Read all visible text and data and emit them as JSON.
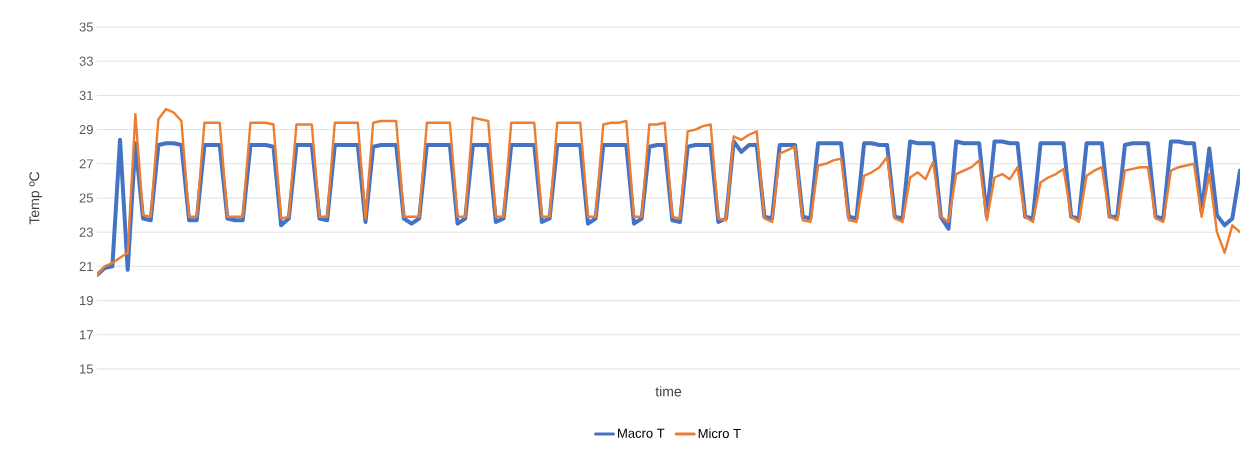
{
  "chart_data": {
    "type": "line",
    "xlabel": "time",
    "ylabel": "Temp ºC",
    "categories": [
      null,
      null,
      null,
      null,
      null,
      null,
      null,
      null,
      null,
      null,
      null,
      null,
      null,
      null,
      null,
      null,
      null,
      null,
      null,
      null,
      null,
      null,
      null,
      null,
      null,
      null,
      null,
      null,
      null,
      null,
      null,
      null,
      null,
      null,
      null,
      null,
      null,
      null,
      null,
      null,
      null,
      null,
      null,
      null,
      null,
      null,
      null,
      null,
      null,
      null,
      null,
      null,
      null,
      null,
      null,
      null,
      null,
      null,
      null,
      null,
      null,
      null,
      null,
      null,
      null,
      null,
      null,
      null,
      null,
      null,
      null,
      null,
      null,
      null,
      null,
      null,
      null,
      null,
      null,
      null,
      null,
      null,
      null,
      null,
      null,
      null,
      null,
      null,
      null,
      null,
      null,
      null,
      null,
      null,
      null,
      null,
      null,
      null,
      null,
      null,
      null,
      null,
      null,
      null,
      null,
      null,
      null,
      null,
      null,
      null,
      null,
      null,
      null,
      null,
      null,
      null,
      null,
      null,
      null,
      null,
      null,
      null,
      null,
      null,
      null,
      null,
      null,
      null,
      null,
      null,
      null,
      null,
      null,
      null,
      null,
      null,
      null,
      null,
      null,
      null,
      null,
      null,
      null,
      null,
      null,
      null,
      null,
      null,
      null,
      null
    ],
    "series": [
      {
        "name": "Macro T",
        "color": "#4472c4",
        "values": [
          20.5,
          20.9,
          21.0,
          28.4,
          20.8,
          28.2,
          23.8,
          23.7,
          28.1,
          28.2,
          28.2,
          28.1,
          23.7,
          23.7,
          28.1,
          28.1,
          28.1,
          23.8,
          23.7,
          23.7,
          28.1,
          28.1,
          28.1,
          28.0,
          23.4,
          23.8,
          28.1,
          28.1,
          28.1,
          23.8,
          23.7,
          28.1,
          28.1,
          28.1,
          28.1,
          23.6,
          28.0,
          28.1,
          28.1,
          28.1,
          23.8,
          23.5,
          23.8,
          28.1,
          28.1,
          28.1,
          28.1,
          23.5,
          23.8,
          28.1,
          28.1,
          28.1,
          23.6,
          23.8,
          28.1,
          28.1,
          28.1,
          28.1,
          23.6,
          23.8,
          28.1,
          28.1,
          28.1,
          28.1,
          23.5,
          23.8,
          28.1,
          28.1,
          28.1,
          28.1,
          23.5,
          23.8,
          28.0,
          28.1,
          28.1,
          23.7,
          23.6,
          28.0,
          28.1,
          28.1,
          28.1,
          23.6,
          23.8,
          28.3,
          27.7,
          28.1,
          28.1,
          23.9,
          23.8,
          28.1,
          28.1,
          28.1,
          23.9,
          23.8,
          28.2,
          28.2,
          28.2,
          28.2,
          23.9,
          23.8,
          28.2,
          28.2,
          28.1,
          28.1,
          23.9,
          23.8,
          28.3,
          28.2,
          28.2,
          28.2,
          23.9,
          23.2,
          28.3,
          28.2,
          28.2,
          28.2,
          23.9,
          28.3,
          28.3,
          28.2,
          28.2,
          23.9,
          23.8,
          28.2,
          28.2,
          28.2,
          28.2,
          23.9,
          23.8,
          28.2,
          28.2,
          28.2,
          23.9,
          23.9,
          28.1,
          28.2,
          28.2,
          28.2,
          23.9,
          23.8,
          28.3,
          28.3,
          28.2,
          28.2,
          24.2,
          27.9,
          24.0,
          23.4,
          23.8,
          26.6
        ]
      },
      {
        "name": "Micro T",
        "color": "#ed7d31",
        "values": [
          20.5,
          21.0,
          21.2,
          21.5,
          21.8,
          29.9,
          24.0,
          23.9,
          29.6,
          30.2,
          30.0,
          29.5,
          23.9,
          23.9,
          29.4,
          29.4,
          29.4,
          23.9,
          23.9,
          23.9,
          29.4,
          29.4,
          29.4,
          29.3,
          23.8,
          23.9,
          29.3,
          29.3,
          29.3,
          23.9,
          23.9,
          29.4,
          29.4,
          29.4,
          29.4,
          23.8,
          29.4,
          29.5,
          29.5,
          29.5,
          23.9,
          23.9,
          23.9,
          29.4,
          29.4,
          29.4,
          29.4,
          23.9,
          23.9,
          29.7,
          29.6,
          29.5,
          23.9,
          23.9,
          29.4,
          29.4,
          29.4,
          29.4,
          23.9,
          23.9,
          29.4,
          29.4,
          29.4,
          29.4,
          23.9,
          23.9,
          29.3,
          29.4,
          29.4,
          29.5,
          23.9,
          23.9,
          29.3,
          29.3,
          29.4,
          23.9,
          23.8,
          28.9,
          29.0,
          29.2,
          29.3,
          23.8,
          23.7,
          28.6,
          28.4,
          28.7,
          28.9,
          23.8,
          23.6,
          27.6,
          27.8,
          28.0,
          23.7,
          23.6,
          26.9,
          27.0,
          27.2,
          27.3,
          23.7,
          23.6,
          26.3,
          26.5,
          26.8,
          27.4,
          23.8,
          23.6,
          26.2,
          26.5,
          26.1,
          27.1,
          23.9,
          23.6,
          26.4,
          26.6,
          26.8,
          27.2,
          23.7,
          26.2,
          26.4,
          26.1,
          26.8,
          23.9,
          23.6,
          25.9,
          26.2,
          26.4,
          26.7,
          23.9,
          23.6,
          26.3,
          26.6,
          26.8,
          23.9,
          23.7,
          26.6,
          26.7,
          26.8,
          26.8,
          23.8,
          23.6,
          26.6,
          26.8,
          26.9,
          27.0,
          23.9,
          26.4,
          23.0,
          21.8,
          23.4,
          23.0
        ]
      }
    ],
    "ylim": [
      15,
      35
    ],
    "yticks": [
      15,
      17,
      19,
      21,
      23,
      25,
      27,
      29,
      31,
      33,
      35
    ],
    "grid": "y",
    "legend": "bottom",
    "marker": "none"
  }
}
